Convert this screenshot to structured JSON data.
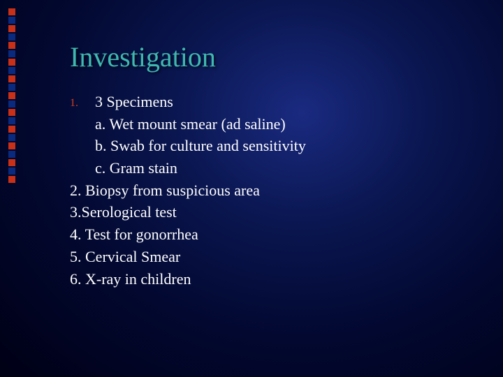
{
  "title": "Investigation",
  "bullet_strip": {
    "count": 21,
    "colors": [
      "#c83018",
      "#0a2a80"
    ],
    "size": 10
  },
  "lines": {
    "item1_num": "1.",
    "item1_text": "3 Specimens",
    "sub_a": "a. Wet mount smear (ad saline)",
    "sub_b": "b. Swab for culture and sensitivity",
    "sub_c": "c. Gram stain",
    "item2": "2. Biopsy from suspicious area",
    "item3": "3.Serological test",
    "item4": "4. Test for gonorrhea",
    "item5": "5. Cervical Smear",
    "item6": "6. X-ray in children"
  },
  "styles": {
    "title_color": "#3fb8b0",
    "text_color": "#ffffff",
    "marker_color": "#d04020",
    "title_fontsize": 40,
    "body_fontsize": 22
  }
}
